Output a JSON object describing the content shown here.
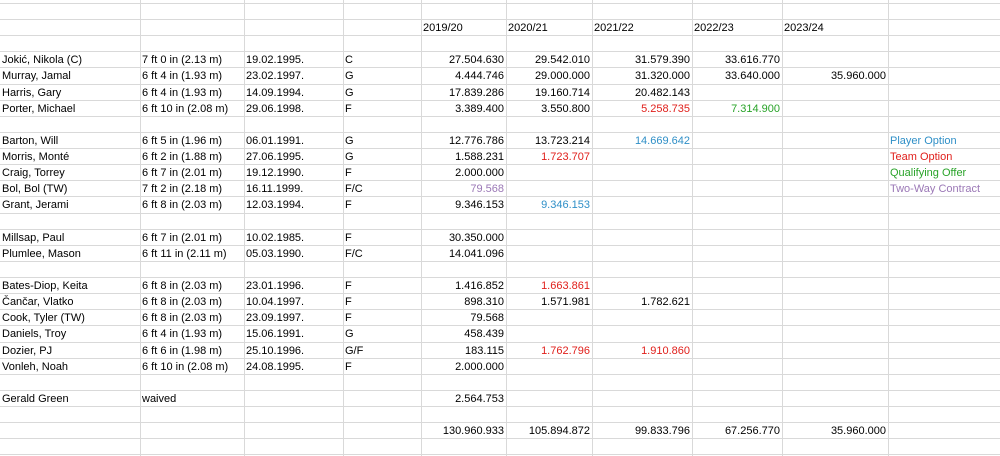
{
  "colors": {
    "player_option": "#2f8fc7",
    "team_option": "#e0201c",
    "qualifying_offer": "#29a329",
    "two_way": "#9b78b6"
  },
  "header": {
    "seasons": [
      "2019/20",
      "2020/21",
      "2021/22",
      "2022/23",
      "2023/24"
    ]
  },
  "legend": {
    "player_option": "Player Option",
    "team_option": "Team Option",
    "qualifying_offer": "Qualifying Offer",
    "two_way": "Two-Way Contract"
  },
  "rows": [
    {
      "name": "Jokić, Nikola (C)",
      "height": "7 ft 0 in (2.13 m)",
      "dob": "19.02.1995.",
      "pos": "C",
      "s": [
        "27.504.630",
        "29.542.010",
        "31.579.390",
        "33.616.770",
        ""
      ],
      "c": [
        "",
        "",
        "",
        "",
        ""
      ]
    },
    {
      "name": "Murray, Jamal",
      "height": "6 ft 4 in (1.93 m)",
      "dob": "23.02.1997.",
      "pos": "G",
      "s": [
        "4.444.746",
        "29.000.000",
        "31.320.000",
        "33.640.000",
        "35.960.000"
      ],
      "c": [
        "",
        "",
        "",
        "",
        ""
      ]
    },
    {
      "name": "Harris, Gary",
      "height": "6 ft 4 in (1.93 m)",
      "dob": "14.09.1994.",
      "pos": "G",
      "s": [
        "17.839.286",
        "19.160.714",
        "20.482.143",
        "",
        ""
      ],
      "c": [
        "",
        "",
        "",
        "",
        ""
      ]
    },
    {
      "name": "Porter, Michael",
      "height": "6 ft 10 in (2.08 m)",
      "dob": "29.06.1998.",
      "pos": "F",
      "s": [
        "3.389.400",
        "3.550.800",
        "5.258.735",
        "7.314.900",
        ""
      ],
      "c": [
        "",
        "",
        "red",
        "green",
        ""
      ]
    },
    {
      "name": "Barton, Will",
      "height": "6 ft 5 in (1.96 m)",
      "dob": "06.01.1991.",
      "pos": "G",
      "s": [
        "12.776.786",
        "13.723.214",
        "14.669.642",
        "",
        ""
      ],
      "c": [
        "",
        "",
        "blue",
        "",
        ""
      ]
    },
    {
      "name": "Morris, Monté",
      "height": "6 ft 2 in (1.88 m)",
      "dob": "27.06.1995.",
      "pos": "G",
      "s": [
        "1.588.231",
        "1.723.707",
        "",
        "",
        ""
      ],
      "c": [
        "",
        "red",
        "",
        "",
        ""
      ]
    },
    {
      "name": "Craig, Torrey",
      "height": "6 ft 7 in (2.01 m)",
      "dob": "19.12.1990.",
      "pos": "F",
      "s": [
        "2.000.000",
        "",
        "",
        "",
        ""
      ],
      "c": [
        "",
        "",
        "",
        "",
        ""
      ]
    },
    {
      "name": "Bol, Bol (TW)",
      "height": "7 ft 2 in (2.18 m)",
      "dob": "16.11.1999.",
      "pos": "F/C",
      "s": [
        "79.568",
        "",
        "",
        "",
        ""
      ],
      "c": [
        "purple",
        "",
        "",
        "",
        ""
      ]
    },
    {
      "name": "Grant, Jerami",
      "height": "6 ft 8 in (2.03 m)",
      "dob": "12.03.1994.",
      "pos": "F",
      "s": [
        "9.346.153",
        "9.346.153",
        "",
        "",
        ""
      ],
      "c": [
        "",
        "blue",
        "",
        "",
        ""
      ]
    },
    {
      "name": "Millsap, Paul",
      "height": "6 ft 7 in (2.01 m)",
      "dob": "10.02.1985.",
      "pos": "F",
      "s": [
        "30.350.000",
        "",
        "",
        "",
        ""
      ],
      "c": [
        "",
        "",
        "",
        "",
        ""
      ]
    },
    {
      "name": "Plumlee, Mason",
      "height": "6 ft 11 in (2.11 m)",
      "dob": "05.03.1990.",
      "pos": "F/C",
      "s": [
        "14.041.096",
        "",
        "",
        "",
        ""
      ],
      "c": [
        "",
        "",
        "",
        "",
        ""
      ]
    },
    {
      "name": "Bates-Diop, Keita",
      "height": "6 ft 8 in (2.03 m)",
      "dob": "23.01.1996.",
      "pos": "F",
      "s": [
        "1.416.852",
        "1.663.861",
        "",
        "",
        ""
      ],
      "c": [
        "",
        "red",
        "",
        "",
        ""
      ]
    },
    {
      "name": "Čančar, Vlatko",
      "height": "6 ft 8 in (2.03 m)",
      "dob": "10.04.1997.",
      "pos": "F",
      "s": [
        "898.310",
        "1.571.981",
        "1.782.621",
        "",
        ""
      ],
      "c": [
        "",
        "",
        "",
        "",
        ""
      ]
    },
    {
      "name": "Cook, Tyler (TW)",
      "height": "6 ft 8 in (2.03 m)",
      "dob": "23.09.1997.",
      "pos": "F",
      "s": [
        "79.568",
        "",
        "",
        "",
        ""
      ],
      "c": [
        "",
        "",
        "",
        "",
        ""
      ]
    },
    {
      "name": "Daniels, Troy",
      "height": "6 ft 4 in (1.93 m)",
      "dob": "15.06.1991.",
      "pos": "G",
      "s": [
        "458.439",
        "",
        "",
        "",
        ""
      ],
      "c": [
        "",
        "",
        "",
        "",
        ""
      ]
    },
    {
      "name": "Dozier, PJ",
      "height": "6 ft 6 in (1.98 m)",
      "dob": "25.10.1996.",
      "pos": "G/F",
      "s": [
        "183.115",
        "1.762.796",
        "1.910.860",
        "",
        ""
      ],
      "c": [
        "",
        "red",
        "red",
        "",
        ""
      ]
    },
    {
      "name": "Vonleh, Noah",
      "height": "6 ft 10 in (2.08 m)",
      "dob": "24.08.1995.",
      "pos": "F",
      "s": [
        "2.000.000",
        "",
        "",
        "",
        ""
      ],
      "c": [
        "",
        "",
        "",
        "",
        ""
      ]
    },
    {
      "name": "Gerald Green",
      "height": "waived",
      "dob": "",
      "pos": "",
      "s": [
        "2.564.753",
        "",
        "",
        "",
        ""
      ],
      "c": [
        "",
        "",
        "",
        "",
        ""
      ]
    }
  ],
  "totals": [
    "130.960.933",
    "105.894.872",
    "99.833.796",
    "67.256.770",
    "35.960.000"
  ]
}
